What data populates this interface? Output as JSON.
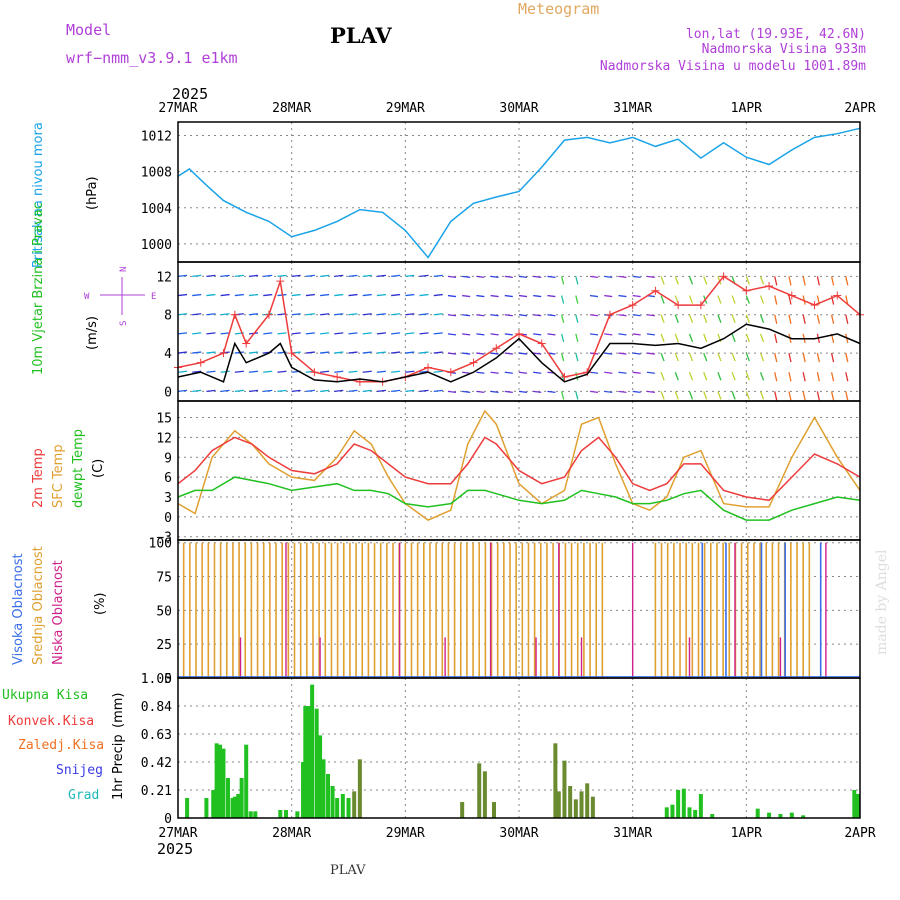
{
  "header": {
    "model_label": "Model",
    "model_name": "wrf−nmm_v3.9.1 e1km",
    "station_title": "PLAV",
    "meteogram_label": "Meteogram",
    "lonlat": "lon,lat (19.93E, 42.6N)",
    "elevation": "Nadmorska Visina 933m",
    "model_elevation": "Nadmorska Visina u modelu 1001.89m",
    "year": "2025",
    "footer_station": "PLAV",
    "watermark": "made by Angel"
  },
  "colors": {
    "pressure": "#1aa3e8",
    "temp2m": "#ee3b3b",
    "sfc": "#e0a030",
    "dewpt": "#20c020",
    "visoka": "#3a6fe8",
    "srednja": "#e0a030",
    "niska": "#d0208a",
    "total_precip": "#20c020",
    "konvek": "#ee3b3b",
    "zaledj": "#f07020",
    "snijeg": "#3a3ae8",
    "grad": "#20b8b8",
    "purple": "#b040d8",
    "orange": "#e0a860"
  },
  "chart_data": [
    {
      "type": "line",
      "id": "pressure",
      "ylabel": "Pritisak na nivou mora",
      "unit": "(hPa)",
      "x_ticks": [
        "27MAR",
        "28MAR",
        "29MAR",
        "30MAR",
        "31MAR",
        "1APR",
        "2APR"
      ],
      "yticks": [
        1000,
        1004,
        1008,
        1012
      ],
      "ylim": [
        998,
        1013.5
      ],
      "x": [
        0,
        0.1,
        0.25,
        0.4,
        0.6,
        0.8,
        1.0,
        1.2,
        1.4,
        1.6,
        1.8,
        2.0,
        2.2,
        2.4,
        2.6,
        2.8,
        3.0,
        3.2,
        3.4,
        3.6,
        3.8,
        4.0,
        4.2,
        4.4,
        4.6,
        4.8,
        5.0,
        5.2,
        5.4,
        5.6,
        5.8,
        6.0
      ],
      "series": [
        {
          "values": [
            1007.5,
            1008.3,
            1006.5,
            1004.8,
            1003.5,
            1002.5,
            1000.8,
            1001.5,
            1002.5,
            1003.8,
            1003.5,
            1001.5,
            998.5,
            1002.5,
            1004.5,
            1005.2,
            1005.8,
            1008.5,
            1011.5,
            1011.8,
            1011.2,
            1011.8,
            1010.8,
            1011.6,
            1009.5,
            1011.2,
            1009.6,
            1008.8,
            1010.4,
            1011.8,
            1012.2,
            1012.8
          ]
        }
      ],
      "grid": true
    },
    {
      "type": "line",
      "id": "wind",
      "ylabel": "10m Vjetar Brzina i Pravac",
      "unit": "(m/s)",
      "compass": {
        "n": "N",
        "s": "S",
        "e": "E",
        "w": "W"
      },
      "yticks": [
        0,
        4,
        8,
        12
      ],
      "ylim": [
        -1,
        13.5
      ],
      "x": [
        0,
        0.2,
        0.4,
        0.5,
        0.6,
        0.8,
        0.9,
        1.0,
        1.2,
        1.4,
        1.6,
        1.8,
        2.0,
        2.2,
        2.4,
        2.6,
        2.8,
        3.0,
        3.2,
        3.4,
        3.6,
        3.8,
        4.0,
        4.2,
        4.4,
        4.6,
        4.8,
        5.0,
        5.2,
        5.4,
        5.6,
        5.8,
        6.0
      ],
      "series": [
        {
          "name": "mean",
          "values": [
            1.5,
            2,
            1,
            5,
            3,
            4,
            5,
            2.5,
            1.2,
            1,
            1.3,
            1,
            1.5,
            2,
            1,
            2,
            3.5,
            5.5,
            3,
            1,
            1.8,
            5,
            5,
            4.8,
            5,
            4.5,
            5.5,
            7,
            6.5,
            5.5,
            5.5,
            6,
            5
          ]
        },
        {
          "name": "gust",
          "values": [
            2.5,
            3,
            4,
            8,
            5,
            8,
            11.5,
            4,
            2,
            1.5,
            1,
            1,
            1.5,
            2.5,
            2,
            3,
            4.5,
            6,
            5,
            1.5,
            2,
            8,
            9,
            10.5,
            9,
            9,
            12,
            10.5,
            11,
            10,
            9,
            10,
            8
          ]
        }
      ],
      "grid": true
    },
    {
      "type": "line",
      "id": "temperature",
      "ylabel_2m": "2m Temp",
      "ylabel_sfc": "SFC Temp",
      "ylabel_dew": "dewpt Temp",
      "unit": "(C)",
      "yticks": [
        -3,
        0,
        3,
        6,
        9,
        12,
        15
      ],
      "ylim": [
        -3.5,
        17.5
      ],
      "x": [
        0,
        0.15,
        0.3,
        0.5,
        0.65,
        0.8,
        1.0,
        1.2,
        1.4,
        1.55,
        1.7,
        1.85,
        2.0,
        2.2,
        2.4,
        2.55,
        2.7,
        2.8,
        3.0,
        3.2,
        3.4,
        3.55,
        3.7,
        3.85,
        4.0,
        4.15,
        4.3,
        4.45,
        4.6,
        4.8,
        5.0,
        5.2,
        5.4,
        5.6,
        5.8,
        6.0
      ],
      "series": [
        {
          "name": "2m Temp",
          "values": [
            5,
            7,
            10,
            12,
            11,
            9,
            7,
            6.5,
            8,
            11,
            10,
            8,
            6,
            5,
            5,
            8,
            12,
            11,
            7,
            5,
            6,
            10,
            12,
            9,
            5,
            4,
            5,
            8,
            8,
            4,
            3,
            2.5,
            6,
            9.5,
            8,
            6
          ]
        },
        {
          "name": "SFC Temp",
          "values": [
            2,
            0.5,
            9,
            13,
            11,
            8,
            6,
            5.5,
            9,
            13,
            11,
            6,
            2,
            -0.5,
            1,
            11,
            16,
            14,
            5,
            2,
            4,
            14,
            15,
            8,
            2,
            1,
            3,
            9,
            10,
            2,
            1.5,
            1.5,
            9,
            15,
            9,
            4
          ]
        },
        {
          "name": "dewpt Temp",
          "values": [
            3,
            4,
            4,
            6,
            5.5,
            5,
            4,
            4.5,
            5,
            4,
            4,
            3.5,
            2,
            1.5,
            2,
            4,
            4,
            3.5,
            2.5,
            2,
            2.5,
            4,
            3.5,
            3,
            2,
            2,
            2.5,
            3.5,
            4,
            1,
            -0.5,
            -0.5,
            1,
            2,
            3,
            2.5
          ]
        }
      ],
      "grid": true
    },
    {
      "type": "bar",
      "id": "cloud",
      "ylabel_visoka": "Visoka Oblacnost",
      "ylabel_srednja": "Srednja Oblacnost",
      "ylabel_niska": "Niska Oblacnost",
      "unit": "(%)",
      "yticks": [
        0,
        25,
        50,
        75,
        100
      ],
      "ylim": [
        0,
        102
      ],
      "bands": [
        {
          "from": 0.05,
          "to": 3.75,
          "series": "srednja",
          "value": 100
        },
        {
          "from": 4.2,
          "to": 5.6,
          "series": "srednja",
          "value": 100
        },
        {
          "from": 4.3,
          "to": 5.8,
          "series": "visoka",
          "value": 100
        }
      ],
      "grid": true
    },
    {
      "type": "bar",
      "id": "precip",
      "ylabel": "1hr Precip",
      "unit": "(mm)",
      "legend": [
        "Ukupna Kisa",
        "Konvek.Kisa",
        "Zaledj.Kisa",
        "Snijeg",
        "Grad"
      ],
      "yticks": [
        0,
        0.21,
        0.42,
        0.63,
        0.84,
        1.05
      ],
      "ylim": [
        0,
        1.05
      ],
      "x": [
        0.08,
        0.25,
        0.31,
        0.34,
        0.37,
        0.4,
        0.44,
        0.48,
        0.5,
        0.53,
        0.56,
        0.6,
        0.64,
        0.68,
        0.9,
        0.95,
        1.05,
        1.1,
        1.12,
        1.15,
        1.18,
        1.22,
        1.25,
        1.28,
        1.32,
        1.36,
        1.4,
        1.45,
        1.5,
        1.55,
        1.6,
        2.5,
        2.65,
        2.7,
        2.78,
        3.32,
        3.35,
        3.4,
        3.45,
        3.5,
        3.55,
        3.6,
        3.65,
        4.3,
        4.35,
        4.4,
        4.45,
        4.5,
        4.55,
        4.6,
        4.7,
        5.1,
        5.2,
        5.3,
        5.4,
        5.5,
        5.95,
        5.98
      ],
      "values": [
        0.15,
        0.15,
        0.21,
        0.56,
        0.55,
        0.52,
        0.3,
        0.15,
        0.16,
        0.18,
        0.3,
        0.55,
        0.05,
        0.05,
        0.06,
        0.06,
        0.05,
        0.42,
        0.84,
        0.84,
        1.0,
        0.82,
        0.62,
        0.44,
        0.33,
        0.24,
        0.15,
        0.18,
        0.15,
        0.2,
        0.44,
        0.12,
        0.41,
        0.35,
        0.12,
        0.56,
        0.2,
        0.43,
        0.24,
        0.14,
        0.2,
        0.26,
        0.16,
        0.08,
        0.1,
        0.21,
        0.22,
        0.08,
        0.06,
        0.18,
        0.03,
        0.07,
        0.04,
        0.03,
        0.04,
        0.02,
        0.21,
        0.18
      ],
      "grid": true
    }
  ]
}
